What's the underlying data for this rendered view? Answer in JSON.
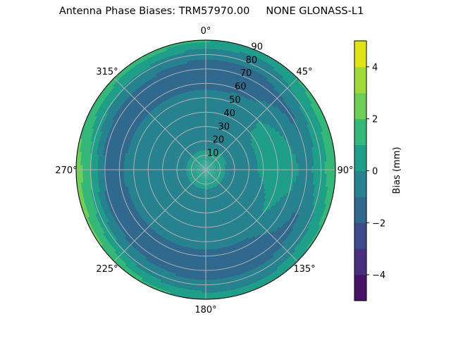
{
  "chart_data": {
    "type": "heatmap",
    "subtype": "polar-filled-contour",
    "title": "Antenna Phase Biases: TRM57970.00     NONE GLONASS-L1",
    "angular_axis": {
      "direction": "clockwise",
      "zero": "top",
      "tick_labels": [
        "0°",
        "45°",
        "90°",
        "135°",
        "180°",
        "225°",
        "270°",
        "315°"
      ]
    },
    "radial_axis": {
      "range": [
        0,
        90
      ],
      "tick_labels": [
        "10",
        "20",
        "30",
        "40",
        "50",
        "60",
        "70",
        "80",
        "90"
      ]
    },
    "grid": true,
    "colorbar": {
      "label": "Bias (mm)",
      "colormap": "viridis",
      "levels": [
        -5,
        -4,
        -3,
        -2,
        -1,
        0,
        1,
        2,
        3,
        4,
        5
      ],
      "tick_labels": [
        "−4",
        "−2",
        "0",
        "2",
        "4"
      ],
      "colors": [
        "#471365",
        "#472f7d",
        "#3e4a89",
        "#31688e",
        "#26828e",
        "#1f9e89",
        "#35b779",
        "#6ece58",
        "#a0da39",
        "#dfe318"
      ]
    },
    "azimuths": [
      0,
      30,
      60,
      90,
      120,
      150,
      180,
      210,
      240,
      270,
      300,
      330
    ],
    "zeniths": [
      0,
      10,
      20,
      30,
      40,
      50,
      60,
      70,
      80,
      90
    ],
    "values": [
      [
        0.5,
        0.5,
        0.5,
        0.5,
        0.5,
        0.5,
        0.5,
        0.5,
        0.5,
        0.5,
        0.5,
        0.5
      ],
      [
        0.2,
        0.5,
        0.5,
        0.2,
        0.2,
        0.2,
        0.2,
        0.2,
        0.2,
        0.2,
        0.2,
        0.2
      ],
      [
        -0.5,
        -0.5,
        -0.5,
        -0.5,
        -0.5,
        -0.5,
        -0.5,
        -0.5,
        -0.5,
        -0.5,
        -0.5,
        -0.5
      ],
      [
        -0.5,
        -0.5,
        -0.4,
        -0.4,
        -0.5,
        -0.5,
        -0.5,
        -0.5,
        -0.5,
        -0.5,
        -0.5,
        -0.5
      ],
      [
        -0.5,
        -0.5,
        0.2,
        0.3,
        -0.4,
        -0.5,
        -0.5,
        -0.5,
        -0.5,
        -0.5,
        -0.5,
        -0.5
      ],
      [
        -0.6,
        -0.6,
        0.4,
        0.5,
        0.2,
        -0.6,
        -0.6,
        -0.6,
        -0.6,
        -0.6,
        -0.6,
        -0.6
      ],
      [
        -1.3,
        -1.2,
        -0.3,
        0.5,
        -0.5,
        -1.3,
        -1.3,
        -1.3,
        -1.3,
        -1.2,
        -1.3,
        -1.3
      ],
      [
        -1.5,
        -1.5,
        -1.2,
        -0.5,
        -1.2,
        -1.5,
        -1.5,
        -1.5,
        -1.4,
        -1.2,
        -1.5,
        -1.5
      ],
      [
        -0.8,
        -0.8,
        0.3,
        0.8,
        -0.3,
        -0.8,
        -0.8,
        -0.5,
        0.5,
        1.2,
        0.2,
        -0.3
      ],
      [
        1.2,
        0.6,
        1.5,
        1.6,
        1.3,
        0.6,
        0.8,
        1.4,
        2.3,
        2.6,
        1.6,
        1.6
      ]
    ]
  }
}
